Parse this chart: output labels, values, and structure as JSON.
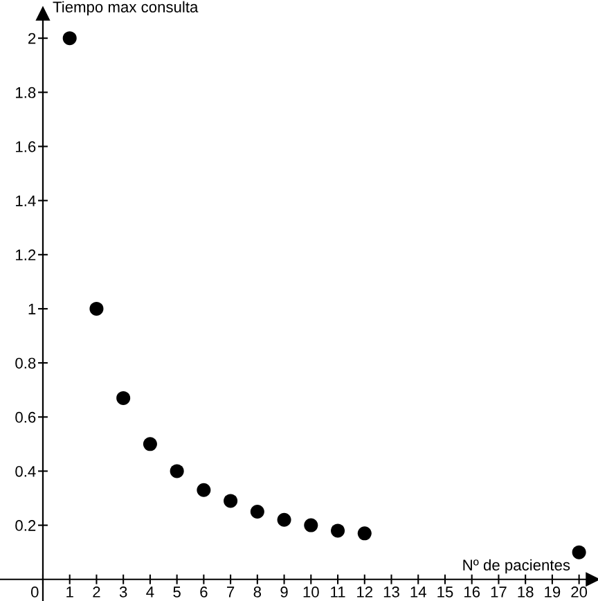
{
  "chart_data": {
    "type": "scatter",
    "xlabel": "Nº de pacientes",
    "ylabel": "Tiempo max consulta",
    "x": [
      1,
      2,
      3,
      4,
      5,
      6,
      7,
      8,
      9,
      10,
      11,
      12,
      20
    ],
    "values": [
      2,
      1,
      0.67,
      0.5,
      0.4,
      0.33,
      0.29,
      0.25,
      0.22,
      0.2,
      0.18,
      0.17,
      0.1
    ],
    "color": "#000000",
    "marker": "circle",
    "xlim": [
      -1.6,
      20.5
    ],
    "ylim": [
      -0.08,
      2.09
    ],
    "xticks": [
      0,
      1,
      2,
      3,
      4,
      5,
      6,
      7,
      8,
      9,
      10,
      11,
      12,
      13,
      14,
      15,
      16,
      17,
      18,
      19,
      20
    ],
    "yticks": [
      0.2,
      0.4,
      0.6,
      0.8,
      1,
      1.2,
      1.4,
      1.6,
      1.8,
      2
    ]
  }
}
